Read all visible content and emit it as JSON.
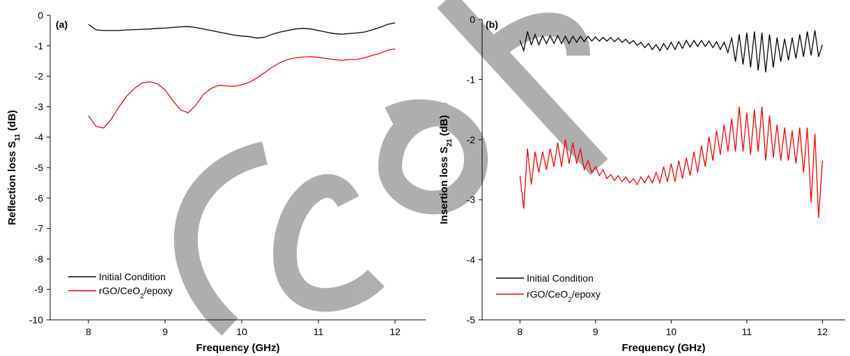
{
  "chart_data": [
    {
      "type": "line",
      "label": "(a)",
      "xlabel": "Frequency (GHz)",
      "ylabel": [
        "Reflection loss S",
        "11",
        " (dB)"
      ],
      "x": [
        8.0,
        8.1,
        8.2,
        8.3,
        8.4,
        8.5,
        8.6,
        8.7,
        8.8,
        8.9,
        9.0,
        9.1,
        9.2,
        9.3,
        9.4,
        9.5,
        9.6,
        9.7,
        9.8,
        9.9,
        10.0,
        10.1,
        10.2,
        10.3,
        10.4,
        10.5,
        10.6,
        10.7,
        10.8,
        10.9,
        11.0,
        11.1,
        11.2,
        11.3,
        11.4,
        11.5,
        11.6,
        11.7,
        11.8,
        11.9,
        12.0
      ],
      "xlim": [
        7.5,
        12.4
      ],
      "ylim": [
        -10,
        0
      ],
      "xticks": [
        8,
        9,
        10,
        11,
        12
      ],
      "yticks": [
        0,
        -1,
        -2,
        -3,
        -4,
        -5,
        -6,
        -7,
        -8,
        -9,
        -10
      ],
      "legend": "lower left",
      "series": [
        {
          "name": [
            "Initial Condition"
          ],
          "color": "#000000",
          "values": [
            -0.3,
            -0.48,
            -0.5,
            -0.5,
            -0.5,
            -0.48,
            -0.47,
            -0.46,
            -0.45,
            -0.43,
            -0.42,
            -0.4,
            -0.38,
            -0.37,
            -0.4,
            -0.45,
            -0.5,
            -0.55,
            -0.6,
            -0.65,
            -0.68,
            -0.7,
            -0.75,
            -0.72,
            -0.62,
            -0.55,
            -0.5,
            -0.45,
            -0.43,
            -0.45,
            -0.5,
            -0.55,
            -0.6,
            -0.62,
            -0.6,
            -0.58,
            -0.55,
            -0.48,
            -0.4,
            -0.3,
            -0.25
          ]
        },
        {
          "name": [
            "rGO/CeO",
            "2",
            "/epoxy"
          ],
          "color": "#ff0000",
          "values": [
            -3.3,
            -3.65,
            -3.7,
            -3.4,
            -3.0,
            -2.65,
            -2.4,
            -2.22,
            -2.18,
            -2.25,
            -2.45,
            -2.8,
            -3.1,
            -3.2,
            -2.95,
            -2.6,
            -2.4,
            -2.3,
            -2.32,
            -2.33,
            -2.28,
            -2.2,
            -2.05,
            -1.88,
            -1.7,
            -1.55,
            -1.45,
            -1.4,
            -1.37,
            -1.36,
            -1.38,
            -1.42,
            -1.45,
            -1.48,
            -1.45,
            -1.45,
            -1.4,
            -1.32,
            -1.25,
            -1.15,
            -1.1
          ]
        }
      ]
    },
    {
      "type": "line",
      "label": "(b)",
      "xlabel": "Frequency (GHz)",
      "ylabel": [
        "Insertion loss S",
        "21",
        " (dB)"
      ],
      "x": [
        8.0,
        8.05,
        8.1,
        8.15,
        8.2,
        8.25,
        8.3,
        8.35,
        8.4,
        8.45,
        8.5,
        8.55,
        8.6,
        8.65,
        8.7,
        8.75,
        8.8,
        8.85,
        8.9,
        8.95,
        9.0,
        9.05,
        9.1,
        9.15,
        9.2,
        9.25,
        9.3,
        9.35,
        9.4,
        9.45,
        9.5,
        9.55,
        9.6,
        9.65,
        9.7,
        9.75,
        9.8,
        9.85,
        9.9,
        9.95,
        10.0,
        10.05,
        10.1,
        10.15,
        10.2,
        10.25,
        10.3,
        10.35,
        10.4,
        10.45,
        10.5,
        10.55,
        10.6,
        10.65,
        10.7,
        10.75,
        10.8,
        10.85,
        10.9,
        10.95,
        11.0,
        11.05,
        11.1,
        11.15,
        11.2,
        11.25,
        11.3,
        11.35,
        11.4,
        11.45,
        11.5,
        11.55,
        11.6,
        11.65,
        11.7,
        11.75,
        11.8,
        11.85,
        11.9,
        11.95,
        12.0
      ],
      "xlim": [
        7.5,
        12.3
      ],
      "ylim": [
        -5,
        0
      ],
      "xticks": [
        8,
        9,
        10,
        11,
        12
      ],
      "yticks": [
        0,
        -1,
        -2,
        -3,
        -4,
        -5
      ],
      "legend": "lower left",
      "series": [
        {
          "name": [
            "Initial Condition"
          ],
          "color": "#000000",
          "values": [
            -0.35,
            -0.52,
            -0.2,
            -0.42,
            -0.25,
            -0.42,
            -0.27,
            -0.4,
            -0.27,
            -0.4,
            -0.27,
            -0.4,
            -0.28,
            -0.4,
            -0.28,
            -0.38,
            -0.28,
            -0.37,
            -0.28,
            -0.36,
            -0.29,
            -0.36,
            -0.3,
            -0.36,
            -0.3,
            -0.37,
            -0.31,
            -0.38,
            -0.33,
            -0.4,
            -0.35,
            -0.43,
            -0.38,
            -0.47,
            -0.4,
            -0.5,
            -0.42,
            -0.52,
            -0.4,
            -0.5,
            -0.38,
            -0.5,
            -0.37,
            -0.48,
            -0.35,
            -0.46,
            -0.35,
            -0.45,
            -0.35,
            -0.45,
            -0.36,
            -0.47,
            -0.37,
            -0.5,
            -0.38,
            -0.55,
            -0.3,
            -0.7,
            -0.25,
            -0.75,
            -0.22,
            -0.8,
            -0.2,
            -0.85,
            -0.22,
            -0.88,
            -0.25,
            -0.8,
            -0.3,
            -0.7,
            -0.32,
            -0.68,
            -0.3,
            -0.65,
            -0.25,
            -0.62,
            -0.2,
            -0.6,
            -0.18,
            -0.62,
            -0.42
          ]
        },
        {
          "name": [
            "rGO/CeO",
            "2",
            "/epoxy"
          ],
          "color": "#ff0000",
          "values": [
            -2.6,
            -3.15,
            -2.15,
            -2.75,
            -2.2,
            -2.55,
            -2.2,
            -2.5,
            -2.15,
            -2.45,
            -2.05,
            -2.45,
            -2.0,
            -2.4,
            -2.05,
            -2.4,
            -2.15,
            -2.5,
            -2.35,
            -2.55,
            -2.45,
            -2.6,
            -2.5,
            -2.65,
            -2.58,
            -2.68,
            -2.6,
            -2.7,
            -2.62,
            -2.72,
            -2.65,
            -2.75,
            -2.62,
            -2.72,
            -2.6,
            -2.72,
            -2.55,
            -2.72,
            -2.45,
            -2.7,
            -2.4,
            -2.7,
            -2.35,
            -2.65,
            -2.3,
            -2.6,
            -2.2,
            -2.55,
            -2.1,
            -2.45,
            -1.95,
            -2.35,
            -1.85,
            -2.25,
            -1.75,
            -2.2,
            -1.65,
            -2.2,
            -1.45,
            -2.2,
            -1.55,
            -2.25,
            -1.5,
            -2.2,
            -1.45,
            -2.35,
            -1.6,
            -2.3,
            -1.75,
            -2.35,
            -1.8,
            -2.35,
            -1.85,
            -2.4,
            -1.8,
            -2.55,
            -1.8,
            -3.05,
            -1.9,
            -3.3,
            -2.35
          ]
        }
      ]
    }
  ]
}
